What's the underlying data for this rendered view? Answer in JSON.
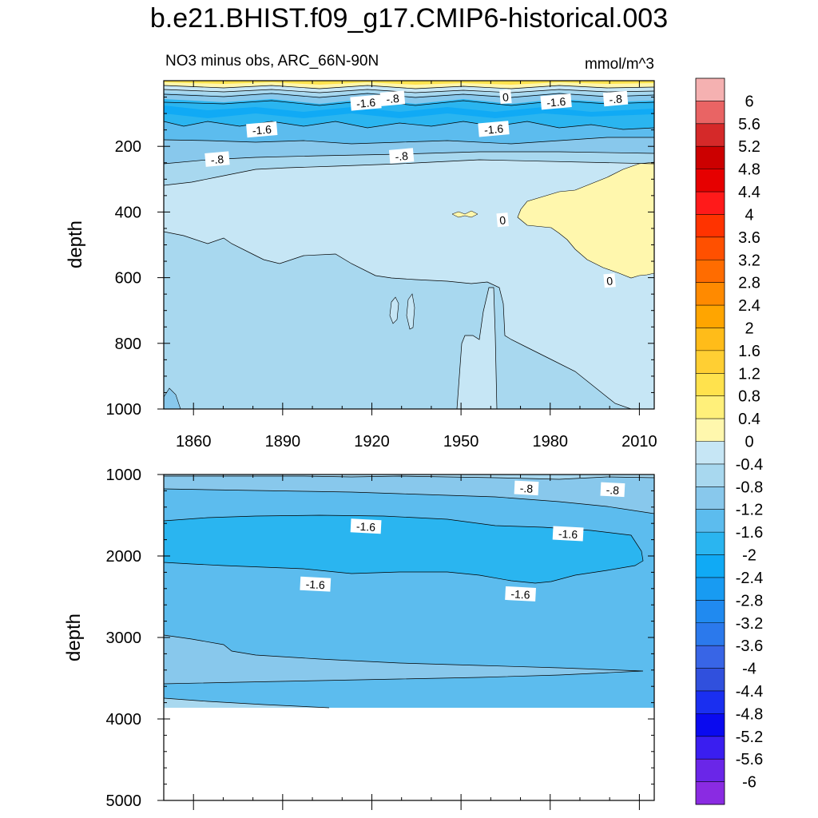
{
  "title": "b.e21.BHIST.f09_g17.CMIP6-historical.003",
  "chart_data": [
    {
      "type": "contour",
      "panel": "upper",
      "subtitle_left": "NO3 minus obs, ARC_66N-90N",
      "subtitle_right": "mmol/m^3",
      "ylabel": "depth",
      "ylim": [
        0,
        1000
      ],
      "y_reversed": true,
      "xlim": [
        1850,
        2015
      ],
      "x_ticks": [
        "1860",
        "1890",
        "1920",
        "1950",
        "1980",
        "2010"
      ],
      "y_ticks": [
        "200",
        "400",
        "600",
        "800",
        "1000"
      ],
      "contour_labels": [
        {
          "text": "-1.6",
          "x": 1918,
          "y": 68
        },
        {
          "text": "-.8",
          "x": 1927,
          "y": 55
        },
        {
          "text": "0",
          "x": 1965,
          "y": 50
        },
        {
          "text": "-1.6",
          "x": 1982,
          "y": 65
        },
        {
          "text": "-.8",
          "x": 2002,
          "y": 56
        },
        {
          "text": "-1.6",
          "x": 1883,
          "y": 150
        },
        {
          "text": "-1.6",
          "x": 1961,
          "y": 148
        },
        {
          "text": "-.8",
          "x": 1868,
          "y": 240
        },
        {
          "text": "-.8",
          "x": 1930,
          "y": 230
        },
        {
          "text": "0",
          "x": 1964,
          "y": 425
        },
        {
          "text": "0",
          "x": 2000,
          "y": 610
        }
      ]
    },
    {
      "type": "contour",
      "panel": "lower",
      "ylabel": "depth",
      "ylim": [
        1000,
        5000
      ],
      "y_reversed": true,
      "xlim": [
        1850,
        2015
      ],
      "y_ticks": [
        "1000",
        "2000",
        "3000",
        "4000",
        "5000"
      ],
      "bottom_depth": 4120,
      "contour_labels": [
        {
          "text": "-.8",
          "x": 1972,
          "y": 1170
        },
        {
          "text": "-.8",
          "x": 2001,
          "y": 1190
        },
        {
          "text": "-1.6",
          "x": 1918,
          "y": 1640
        },
        {
          "text": "-1.6",
          "x": 1986,
          "y": 1730
        },
        {
          "text": "-1.6",
          "x": 1901,
          "y": 2350
        },
        {
          "text": "-1.6",
          "x": 1970,
          "y": 2470
        }
      ]
    }
  ],
  "colorbar": {
    "labels": [
      "6",
      "5.6",
      "5.2",
      "4.8",
      "4.4",
      "4",
      "3.6",
      "3.2",
      "2.8",
      "2.4",
      "2",
      "1.6",
      "1.2",
      "0.8",
      "0.4",
      "0",
      "-0.4",
      "-0.8",
      "-1.2",
      "-1.6",
      "-2",
      "-2.4",
      "-2.8",
      "-3.2",
      "-3.6",
      "-4",
      "-4.4",
      "-4.8",
      "-5.2",
      "-5.6",
      "-6"
    ],
    "colors": [
      "#f5b1b1",
      "#e96464",
      "#d52929",
      "#cc0000",
      "#e60000",
      "#ff1a1a",
      "#ff3300",
      "#ff5000",
      "#ff6c00",
      "#ff8a00",
      "#ffa500",
      "#ffbc19",
      "#ffcf33",
      "#ffe24d",
      "#fff07a",
      "#fff7ad",
      "#c6e6f5",
      "#a8d8ef",
      "#88c8ec",
      "#5cbcee",
      "#2ab5f0",
      "#10aaf5",
      "#189bf2",
      "#208af0",
      "#2b79ec",
      "#3865e6",
      "#3050dd",
      "#1a2ff0",
      "#0a0aef",
      "#3a1ef0",
      "#6a26e8",
      "#8a2be2"
    ]
  }
}
